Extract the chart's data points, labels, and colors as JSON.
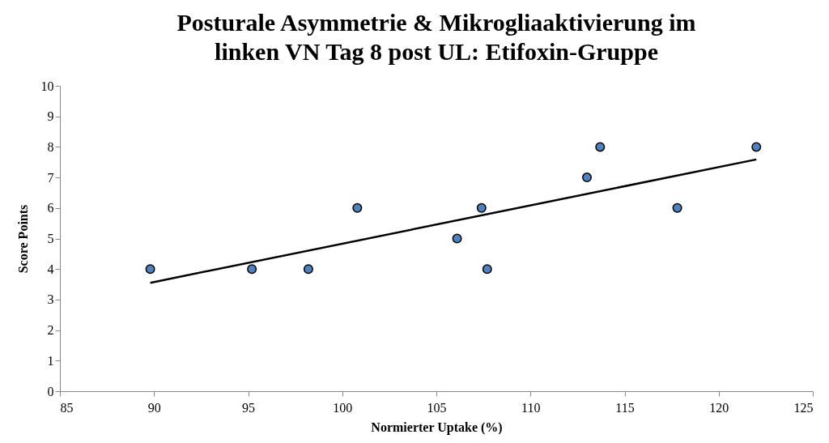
{
  "chart_data": {
    "type": "scatter",
    "title": "Posturale Asymmetrie & Mikrogliaaktivierung im linken VN Tag 8 post UL: Etifoxin-Gruppe",
    "xlabel": "Normierter Uptake (%)",
    "ylabel": "Score Points",
    "xlim": [
      85,
      125
    ],
    "xticks": [
      85,
      90,
      95,
      100,
      105,
      110,
      115,
      120,
      125
    ],
    "ylim": [
      0,
      10
    ],
    "yticks": [
      0,
      1,
      2,
      3,
      4,
      5,
      6,
      7,
      8,
      9,
      10
    ],
    "grid": false,
    "series": [
      {
        "color": "#4f81bd",
        "marker": "circle",
        "x": [
          89.8,
          95.2,
          98.2,
          100.8,
          106.1,
          107.4,
          107.7,
          113.0,
          113.7,
          117.8,
          122.0
        ],
        "values": [
          4,
          4,
          4,
          6,
          5,
          6,
          4,
          7,
          8,
          6,
          8
        ]
      },
      {
        "type": "line",
        "color": "#000000",
        "line_style": "solid",
        "x": [
          89.8,
          122.0
        ],
        "values": [
          3.55,
          7.59
        ]
      }
    ]
  }
}
